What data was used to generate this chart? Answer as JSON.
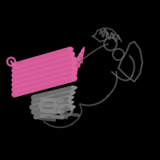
{
  "background_color": "#000000",
  "figure_size": [
    2.0,
    2.0
  ],
  "dpi": 100,
  "pfam_color": "#E060A0",
  "pfam_color2": "#CC4488",
  "structure_color": "#666666",
  "structure_color2": "#888888",
  "strand_lw": 6,
  "loop_lw": 1.5
}
